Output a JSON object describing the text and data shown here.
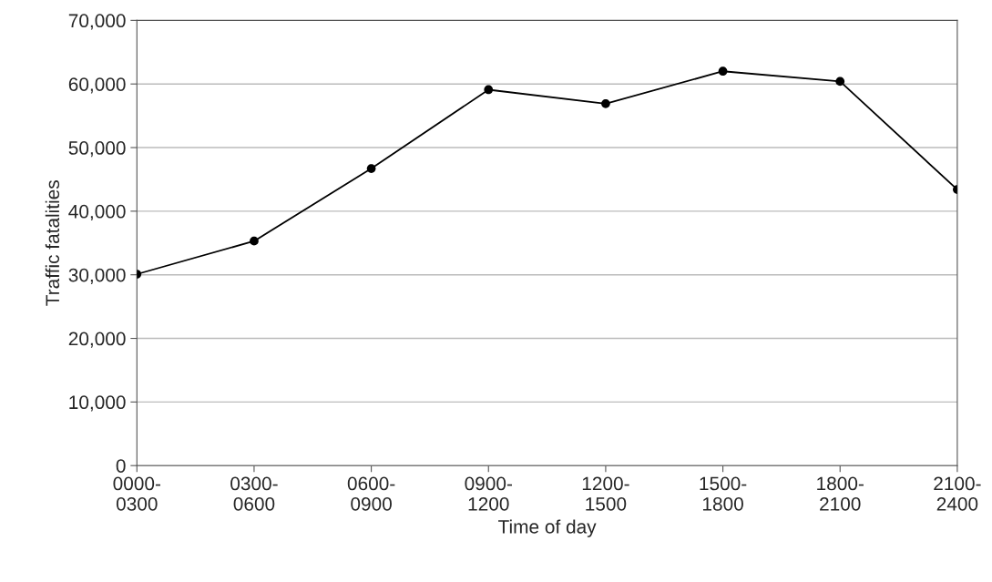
{
  "chart_data": {
    "type": "line",
    "xlabel": "Time of day",
    "ylabel": "Traffic fatalities",
    "categories": [
      "0000-\n0300",
      "0300-\n0600",
      "0600-\n0900",
      "0900-\n1200",
      "1200-\n1500",
      "1500-\n1800",
      "1800-\n2100",
      "2100-\n2400"
    ],
    "series": [
      {
        "color": "#000000",
        "values": [
          30100,
          35300,
          46700,
          59100,
          56900,
          62000,
          60400,
          43400
        ]
      }
    ],
    "ylim": [
      0,
      70000
    ],
    "yticks": [
      {
        "value": 0,
        "label": "0"
      },
      {
        "value": 10000,
        "label": "10,000"
      },
      {
        "value": 20000,
        "label": "20,000"
      },
      {
        "value": 30000,
        "label": "30,000"
      },
      {
        "value": 40000,
        "label": "40,000"
      },
      {
        "value": 50000,
        "label": "50,000"
      },
      {
        "value": 60000,
        "label": "60,000"
      },
      {
        "value": 70000,
        "label": "70,000"
      }
    ],
    "grid": "y",
    "marker": "circle",
    "line_style": "solid"
  }
}
